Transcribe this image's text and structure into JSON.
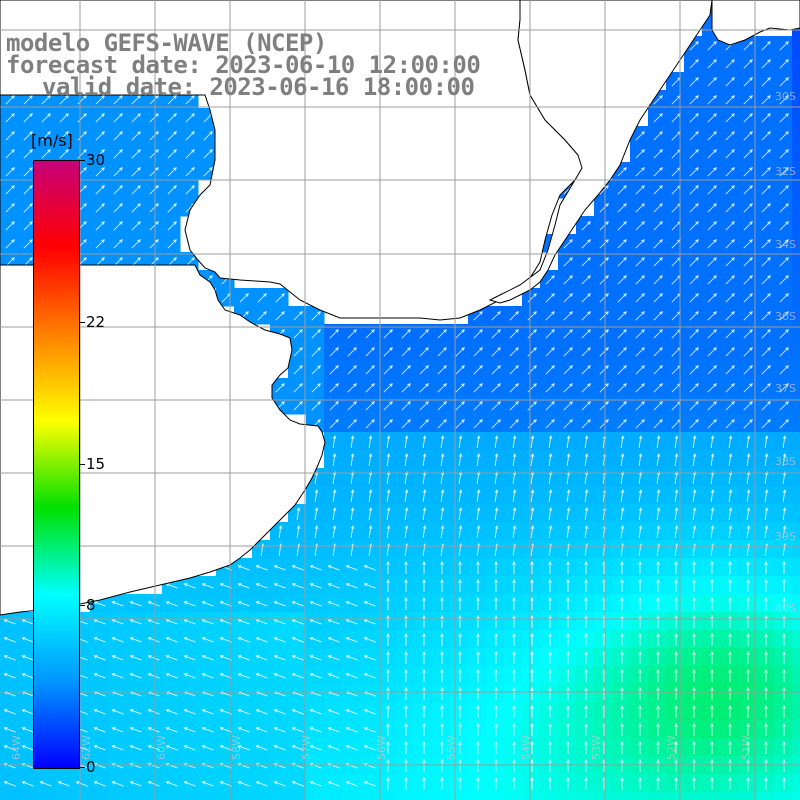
{
  "title": {
    "line1": "modelo GEFS-WAVE (NCEP)",
    "line2": "forecast date: 2023-06-10 12:00:00",
    "line3": "valid date: 2023-06-16 18:00:00"
  },
  "colorbar": {
    "unit": "[m/s]",
    "ticks": [
      "30",
      "22",
      "15",
      "8",
      "0"
    ],
    "tick_values": [
      30,
      22,
      15,
      8,
      0
    ],
    "range": [
      0,
      30
    ],
    "colors": [
      "#0000ff",
      "#0096ff",
      "#00ffff",
      "#00e000",
      "#ffff00",
      "#ff8000",
      "#ff0000",
      "#c8007a"
    ]
  },
  "map": {
    "land_color": "#ffffff",
    "coast_color": "#000000",
    "grid_color": "#9c9c9c",
    "field": "wind speed with direction arrows",
    "arrow_color": "#ffffff",
    "lat_labels_right": [
      "30S",
      "32S",
      "34S",
      "36S",
      "37S",
      "38S",
      "39S",
      "40S"
    ],
    "lon_labels_bottom": [
      "64W",
      "62W",
      "60W",
      "58W",
      "57W",
      "56W",
      "55W",
      "54W",
      "53W",
      "52W",
      "51W"
    ]
  }
}
